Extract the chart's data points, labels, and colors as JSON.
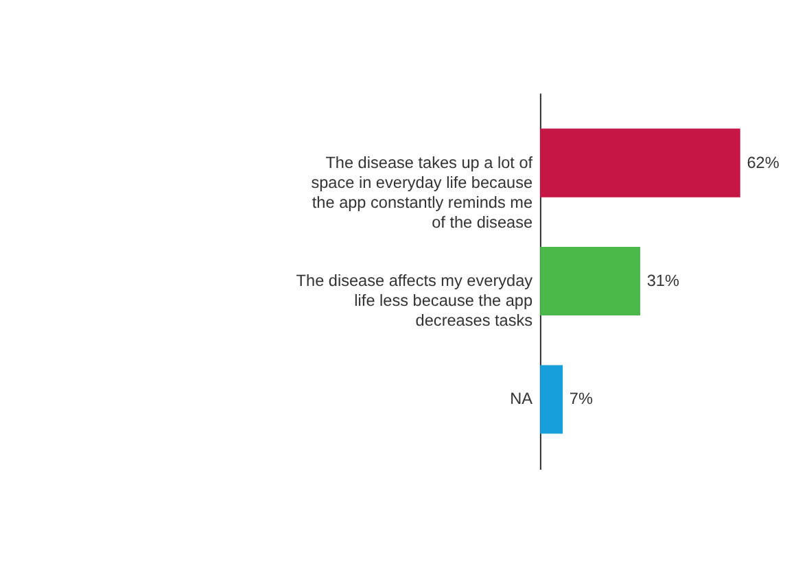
{
  "chart_data": {
    "type": "bar",
    "orientation": "horizontal",
    "categories": [
      "The disease takes up a lot of space in everyday life because the app constantly reminds me of the disease",
      "The disease affects my everyday life less because the app decreases tasks",
      "NA"
    ],
    "values": [
      62,
      31,
      7
    ],
    "colors": [
      "#c51645",
      "#4bb94a",
      "#179fdb"
    ],
    "value_labels": [
      "62%",
      "31%",
      "7%"
    ]
  }
}
